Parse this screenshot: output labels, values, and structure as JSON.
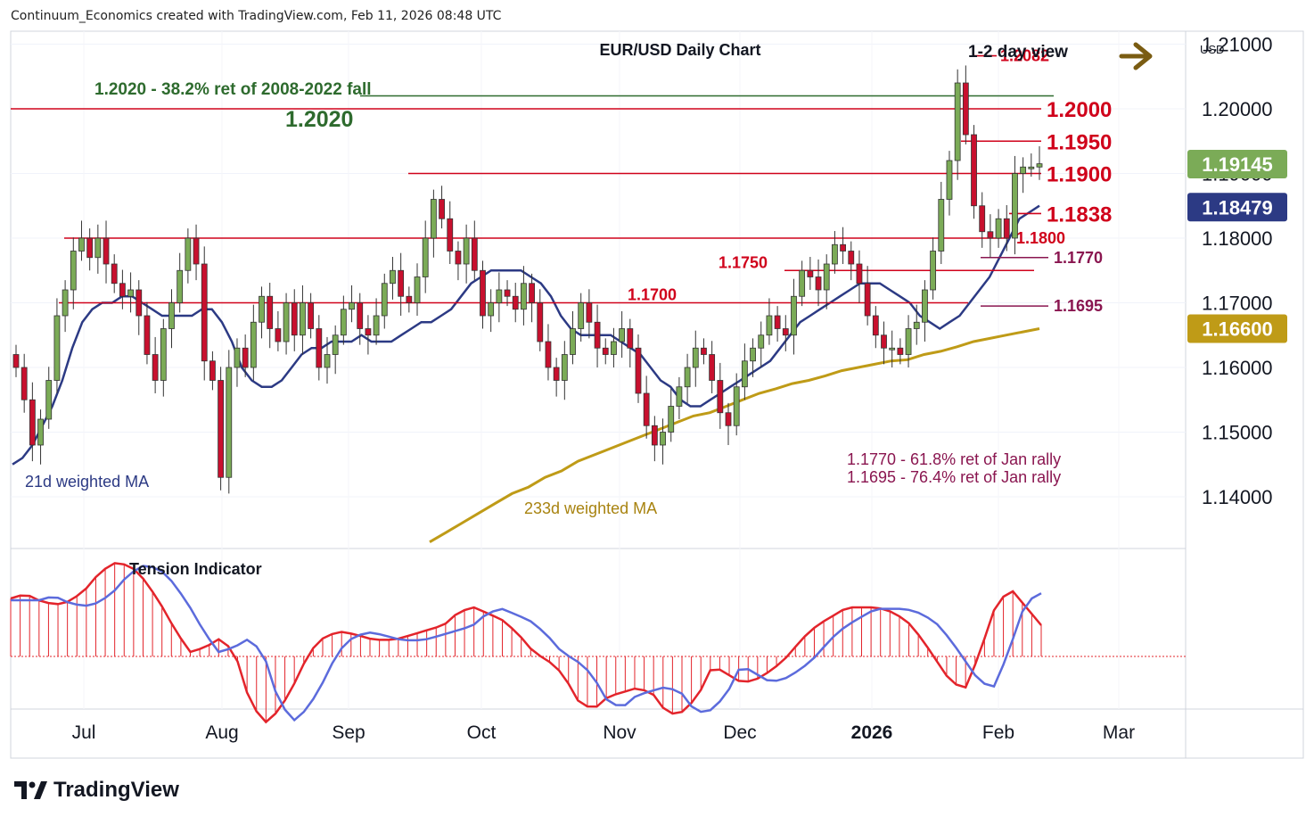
{
  "header": {
    "credit": "Continuum_Economics created with TradingView.com, Feb 11, 2026 08:48 UTC"
  },
  "brand": {
    "name": "TradingView"
  },
  "colors": {
    "up": "#7bab57",
    "down": "#c8102e",
    "ma21": "#2c3a84",
    "ma233": "#bf9b17",
    "support": "#d0021b",
    "fib": "#2e6b2e",
    "tension": "#e3242b",
    "tension_line": "#5c6bdc"
  },
  "chart_data": {
    "type": "candlestick",
    "title": "EUR/USD Daily Chart",
    "view_label": "1-2 day view",
    "view_arrow": "arrow-right-icon",
    "currency": "USD",
    "x_labels": [
      "Jul",
      "Aug",
      "Sep",
      "Oct",
      "Nov",
      "Dec",
      "2026",
      "Feb",
      "Mar"
    ],
    "y_ticks": [
      "1.21000",
      "1.20000",
      "1.19000",
      "1.18000",
      "1.17000",
      "1.16000",
      "1.15000",
      "1.14000"
    ],
    "ylim": [
      1.132,
      1.212
    ],
    "price_badges": [
      {
        "label": "1.19145",
        "value": 1.19145,
        "color": "#7bab57"
      },
      {
        "label": "1.18479",
        "value": 1.18479,
        "color": "#2c3a84"
      },
      {
        "label": "1.16600",
        "value": 1.166,
        "color": "#bf9b17"
      }
    ],
    "levels": [
      {
        "label": "1.2082",
        "value": 1.2082,
        "size": "small"
      },
      {
        "label": "1.2000",
        "value": 1.2,
        "size": "big"
      },
      {
        "label": "1.1950",
        "value": 1.195,
        "size": "big"
      },
      {
        "label": "1.1900",
        "value": 1.19,
        "size": "big"
      },
      {
        "label": "1.1838",
        "value": 1.1838,
        "size": "big"
      },
      {
        "label": "1.1800",
        "value": 1.18,
        "size": "small"
      },
      {
        "label": "1.1770",
        "value": 1.177,
        "size": "small"
      },
      {
        "label": "1.1750",
        "value": 1.175,
        "size": "small"
      },
      {
        "label": "1.1700",
        "value": 1.17,
        "size": "small"
      },
      {
        "label": "1.1695",
        "value": 1.1695,
        "size": "small"
      }
    ],
    "fib_level": {
      "label": "1.2020",
      "value": 1.202,
      "note": "1.2020 - 38.2% ret of 2008-2022 fall"
    },
    "annotations": {
      "ma21": "21d weighted MA",
      "ma233": "233d weighted MA",
      "fib_note_1": "1.1770 - 61.8% ret of Jan rally",
      "fib_note_2": "1.1695 - 76.4% ret of Jan rally",
      "tension_title": "Tension Indicator"
    },
    "close_series": [
      1.16,
      1.155,
      1.148,
      1.152,
      1.158,
      1.168,
      1.172,
      1.178,
      1.18,
      1.177,
      1.18,
      1.176,
      1.173,
      1.171,
      1.172,
      1.168,
      1.162,
      1.158,
      1.166,
      1.17,
      1.175,
      1.18,
      1.176,
      1.161,
      1.158,
      1.143,
      1.16,
      1.163,
      1.16,
      1.167,
      1.171,
      1.166,
      1.164,
      1.17,
      1.165,
      1.17,
      1.166,
      1.16,
      1.162,
      1.165,
      1.169,
      1.17,
      1.166,
      1.165,
      1.168,
      1.173,
      1.175,
      1.171,
      1.17,
      1.174,
      1.18,
      1.186,
      1.183,
      1.178,
      1.176,
      1.18,
      1.175,
      1.168,
      1.17,
      1.172,
      1.171,
      1.169,
      1.173,
      1.17,
      1.164,
      1.16,
      1.158,
      1.162,
      1.166,
      1.17,
      1.167,
      1.163,
      1.162,
      1.164,
      1.166,
      1.163,
      1.156,
      1.151,
      1.148,
      1.15,
      1.154,
      1.157,
      1.16,
      1.163,
      1.162,
      1.158,
      1.153,
      1.151,
      1.157,
      1.161,
      1.163,
      1.165,
      1.168,
      1.166,
      1.165,
      1.171,
      1.175,
      1.174,
      1.172,
      1.176,
      1.179,
      1.178,
      1.176,
      1.173,
      1.168,
      1.165,
      1.163,
      1.163,
      1.162,
      1.166,
      1.167,
      1.172,
      1.178,
      1.186,
      1.192,
      1.204,
      1.196,
      1.185,
      1.181,
      1.18,
      1.183,
      1.18,
      1.19,
      1.191,
      1.191,
      1.1915
    ],
    "ma21_series": [
      1.145,
      1.146,
      1.148,
      1.151,
      1.154,
      1.158,
      1.163,
      1.167,
      1.169,
      1.17,
      1.17,
      1.171,
      1.171,
      1.17,
      1.169,
      1.168,
      1.168,
      1.168,
      1.168,
      1.169,
      1.169,
      1.167,
      1.164,
      1.16,
      1.158,
      1.157,
      1.157,
      1.158,
      1.16,
      1.162,
      1.163,
      1.163,
      1.164,
      1.164,
      1.164,
      1.165,
      1.164,
      1.164,
      1.164,
      1.165,
      1.166,
      1.167,
      1.167,
      1.168,
      1.169,
      1.171,
      1.173,
      1.174,
      1.175,
      1.175,
      1.175,
      1.175,
      1.174,
      1.173,
      1.171,
      1.168,
      1.166,
      1.165,
      1.165,
      1.165,
      1.165,
      1.164,
      1.163,
      1.162,
      1.16,
      1.158,
      1.157,
      1.155,
      1.154,
      1.154,
      1.155,
      1.156,
      1.157,
      1.158,
      1.159,
      1.16,
      1.161,
      1.163,
      1.165,
      1.167,
      1.168,
      1.169,
      1.17,
      1.171,
      1.172,
      1.173,
      1.173,
      1.173,
      1.172,
      1.171,
      1.17,
      1.168,
      1.167,
      1.166,
      1.167,
      1.168,
      1.17,
      1.172,
      1.174,
      1.177,
      1.18,
      1.183,
      1.184,
      1.185
    ],
    "ma233_series": [
      1.133,
      1.1345,
      1.136,
      1.1375,
      1.139,
      1.1405,
      1.1415,
      1.143,
      1.144,
      1.1455,
      1.1465,
      1.1475,
      1.1485,
      1.1495,
      1.1505,
      1.1515,
      1.1525,
      1.153,
      1.154,
      1.155,
      1.156,
      1.1567,
      1.1575,
      1.158,
      1.1587,
      1.1595,
      1.16,
      1.1605,
      1.161,
      1.1612,
      1.162,
      1.1625,
      1.1632,
      1.164,
      1.1645,
      1.165,
      1.1655,
      1.166
    ],
    "tension_series": [
      0.65,
      0.7,
      0.62,
      0.58,
      0.62,
      0.75,
      0.95,
      1.05,
      1.02,
      0.85,
      0.6,
      0.3,
      0.05,
      0.1,
      0.2,
      0.05,
      -0.5,
      -0.75,
      -0.6,
      -0.3,
      0.05,
      0.22,
      0.28,
      0.25,
      0.2,
      0.18,
      0.2,
      0.25,
      0.3,
      0.35,
      0.5,
      0.55,
      0.48,
      0.4,
      0.25,
      0.05,
      -0.05,
      -0.2,
      -0.5,
      -0.6,
      -0.45,
      -0.4,
      -0.35,
      -0.42,
      -0.65,
      -0.62,
      -0.45,
      -0.1,
      -0.2,
      -0.3,
      -0.25,
      -0.15,
      0.0,
      0.2,
      0.35,
      0.45,
      0.55,
      0.55,
      0.55,
      0.5,
      0.4,
      0.2,
      -0.05,
      -0.3,
      -0.35,
      0.1,
      0.6,
      0.75,
      0.55,
      0.35
    ]
  }
}
